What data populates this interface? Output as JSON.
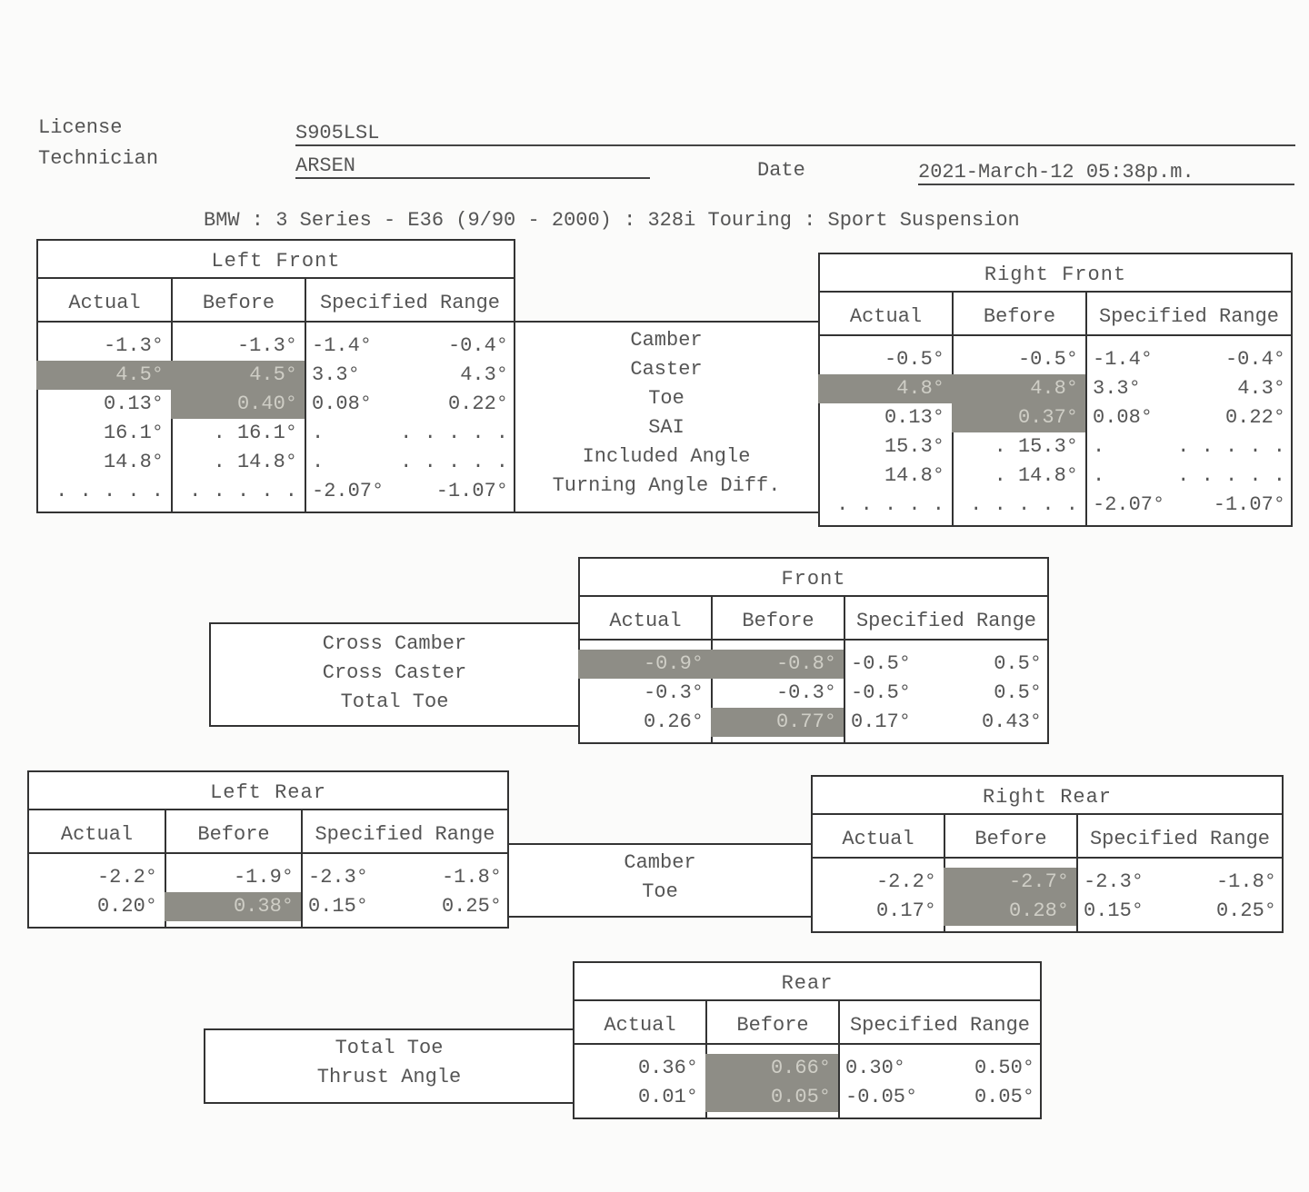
{
  "header": {
    "license_label": "License",
    "license_value": "S905LSL",
    "technician_label": "Technician",
    "technician_value": "ARSEN",
    "date_label": "Date",
    "date_value": "2021-March-12 05:38p.m.",
    "vehicle": "BMW : 3 Series - E36 (9/90 - 2000) : 328i Touring : Sport Suspension"
  },
  "columns": [
    "Actual",
    "Before",
    "Specified Range"
  ],
  "front_labels": [
    "Camber",
    "Caster",
    "Toe",
    "SAI",
    "Included Angle",
    "Turning Angle Diff."
  ],
  "left_front": {
    "title": "Left Front",
    "rows": [
      {
        "actual": "-1.3°",
        "before": "-1.3°",
        "min": "-1.4°",
        "max": "-0.4°",
        "actual_hl": false,
        "before_hl": false
      },
      {
        "actual": "4.5°",
        "before": "4.5°",
        "min": "3.3°",
        "max": "4.3°",
        "actual_hl": true,
        "before_hl": true
      },
      {
        "actual": "0.13°",
        "before": "0.40°",
        "min": "0.08°",
        "max": "0.22°",
        "actual_hl": false,
        "before_hl": true
      },
      {
        "actual": "16.1°",
        "before": ". 16.1°",
        "min": ".",
        "max": ". . . . .",
        "actual_hl": false,
        "before_hl": false
      },
      {
        "actual": "14.8°",
        "before": ". 14.8°",
        "min": ".",
        "max": ". . . . .",
        "actual_hl": false,
        "before_hl": false
      },
      {
        "actual": ". . . . .",
        "before": ". . . . .",
        "min": "-2.07°",
        "max": "-1.07°",
        "actual_hl": false,
        "before_hl": false
      }
    ]
  },
  "right_front": {
    "title": "Right Front",
    "rows": [
      {
        "actual": "-0.5°",
        "before": "-0.5°",
        "min": "-1.4°",
        "max": "-0.4°",
        "actual_hl": false,
        "before_hl": false
      },
      {
        "actual": "4.8°",
        "before": "4.8°",
        "min": "3.3°",
        "max": "4.3°",
        "actual_hl": true,
        "before_hl": true
      },
      {
        "actual": "0.13°",
        "before": "0.37°",
        "min": "0.08°",
        "max": "0.22°",
        "actual_hl": false,
        "before_hl": true
      },
      {
        "actual": "15.3°",
        "before": ". 15.3°",
        "min": ".",
        "max": ". . . . .",
        "actual_hl": false,
        "before_hl": false
      },
      {
        "actual": "14.8°",
        "before": ". 14.8°",
        "min": ".",
        "max": ". . . . .",
        "actual_hl": false,
        "before_hl": false
      },
      {
        "actual": ". . . . .",
        "before": ". . . . .",
        "min": "-2.07°",
        "max": "-1.07°",
        "actual_hl": false,
        "before_hl": false
      }
    ]
  },
  "front_labels_cross": [
    "Cross Camber",
    "Cross Caster",
    "Total Toe"
  ],
  "front": {
    "title": "Front",
    "rows": [
      {
        "actual": "-0.9°",
        "before": "-0.8°",
        "min": "-0.5°",
        "max": "0.5°",
        "actual_hl": true,
        "before_hl": true
      },
      {
        "actual": "-0.3°",
        "before": "-0.3°",
        "min": "-0.5°",
        "max": "0.5°",
        "actual_hl": false,
        "before_hl": false
      },
      {
        "actual": "0.26°",
        "before": "0.77°",
        "min": "0.17°",
        "max": "0.43°",
        "actual_hl": false,
        "before_hl": true
      }
    ]
  },
  "rear_labels": [
    "Camber",
    "Toe"
  ],
  "left_rear": {
    "title": "Left Rear",
    "rows": [
      {
        "actual": "-2.2°",
        "before": "-1.9°",
        "min": "-2.3°",
        "max": "-1.8°",
        "actual_hl": false,
        "before_hl": false
      },
      {
        "actual": "0.20°",
        "before": "0.38°",
        "min": "0.15°",
        "max": "0.25°",
        "actual_hl": false,
        "before_hl": true
      }
    ]
  },
  "right_rear": {
    "title": "Right Rear",
    "rows": [
      {
        "actual": "-2.2°",
        "before": "-2.7°",
        "min": "-2.3°",
        "max": "-1.8°",
        "actual_hl": false,
        "before_hl": true
      },
      {
        "actual": "0.17°",
        "before": "0.28°",
        "min": "0.15°",
        "max": "0.25°",
        "actual_hl": false,
        "before_hl": true
      }
    ]
  },
  "rear_labels_total": [
    "Total Toe",
    "Thrust Angle"
  ],
  "rear": {
    "title": "Rear",
    "rows": [
      {
        "actual": "0.36°",
        "before": "0.66°",
        "min": "0.30°",
        "max": "0.50°",
        "actual_hl": false,
        "before_hl": true
      },
      {
        "actual": "0.01°",
        "before": "0.05°",
        "min": "-0.05°",
        "max": "0.05°",
        "actual_hl": false,
        "before_hl": true
      }
    ]
  }
}
